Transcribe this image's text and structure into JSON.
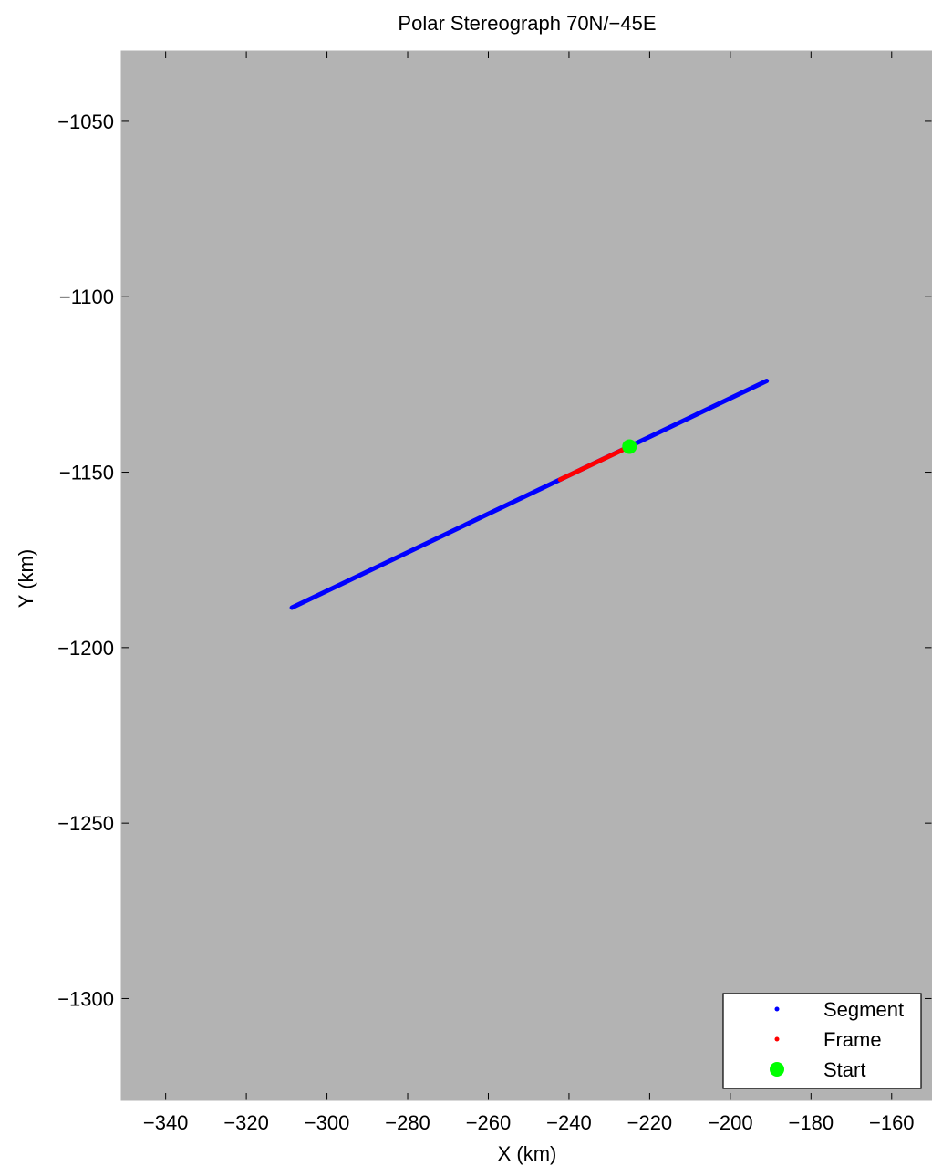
{
  "chart_data": {
    "type": "scatter",
    "title": "Polar Stereograph 70N/−45E",
    "xlabel": "X (km)",
    "ylabel": "Y (km)",
    "xlim": [
      -351,
      -150
    ],
    "ylim": [
      -1329,
      -1030
    ],
    "xticks": [
      -340,
      -320,
      -300,
      -280,
      -260,
      -240,
      -220,
      -200,
      -180,
      -160
    ],
    "xtick_labels": [
      "−340",
      "−320",
      "−300",
      "−280",
      "−260",
      "−240",
      "−220",
      "−200",
      "−180",
      "−160"
    ],
    "yticks": [
      -1050,
      -1100,
      -1150,
      -1200,
      -1250,
      -1300
    ],
    "ytick_labels": [
      "−1050",
      "−1100",
      "−1150",
      "−1200",
      "−1250",
      "−1300"
    ],
    "background": "#b3b3b3",
    "grid": false,
    "legend_position": "bottom-right",
    "series": [
      {
        "name": "Segment",
        "marker": "dot",
        "color": "#0000ff",
        "x": [
          -308.7,
          -191.0
        ],
        "y": [
          -1188.6,
          -1124.0
        ]
      },
      {
        "name": "Frame",
        "marker": "dot",
        "color": "#ff0000",
        "x": [
          -242.2,
          -225.0
        ],
        "y": [
          -1152.1,
          -1142.7
        ]
      },
      {
        "name": "Start",
        "marker": "filled-circle",
        "color": "#00ff00",
        "x": [
          -225.0
        ],
        "y": [
          -1142.7
        ]
      }
    ]
  }
}
